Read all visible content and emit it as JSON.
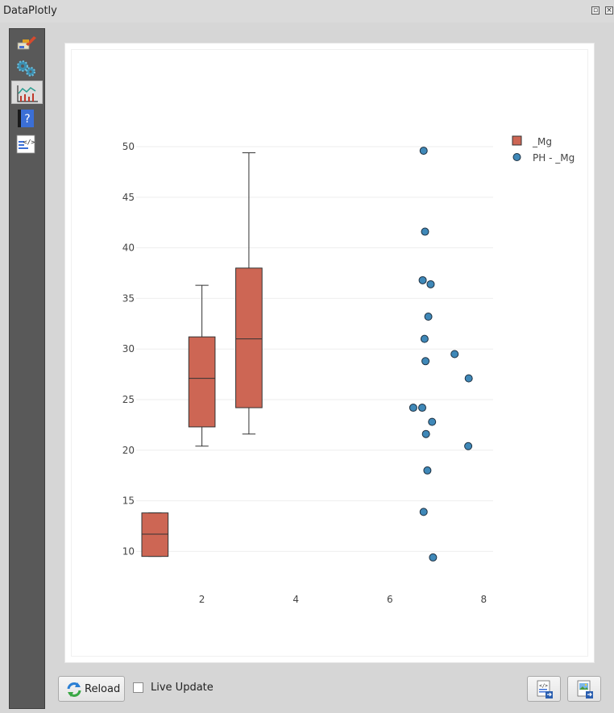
{
  "window": {
    "title": "DataPlotly",
    "float_icon": "float-icon",
    "close_icon": "close-icon"
  },
  "sidebar": {
    "items": [
      {
        "name": "style-brush-icon"
      },
      {
        "name": "settings-gears-icon"
      },
      {
        "name": "plot-chart-icon",
        "active": true
      },
      {
        "name": "help-icon"
      },
      {
        "name": "code-icon"
      }
    ]
  },
  "footer": {
    "reload_label": "Reload",
    "live_update_label": "Live Update",
    "live_update_checked": false,
    "export_html_icon": "export-html-icon",
    "export_image_icon": "export-image-icon"
  },
  "chart_data": {
    "type": "box+scatter",
    "xlim": [
      0.6,
      8.2
    ],
    "ylim": [
      7.8,
      50.8
    ],
    "x_ticks": [
      2,
      4,
      6,
      8
    ],
    "y_ticks": [
      10,
      15,
      20,
      25,
      30,
      35,
      40,
      45,
      50
    ],
    "grid": "horizontal",
    "legend_position": "top-right",
    "colors": {
      "box": "#cd6654",
      "points": "#3f88b8",
      "grid": "#eeeeee",
      "text": "#444444"
    },
    "series": [
      {
        "name": "_Mg",
        "type": "box",
        "boxes": [
          {
            "x": 1,
            "q1": 9.5,
            "median": 11.7,
            "q3": 13.8,
            "lower": 9.5,
            "upper": 13.8
          },
          {
            "x": 2,
            "q1": 22.3,
            "median": 27.1,
            "q3": 31.2,
            "lower": 20.4,
            "upper": 36.3
          },
          {
            "x": 3,
            "q1": 24.2,
            "median": 31.0,
            "q3": 38.0,
            "lower": 21.6,
            "upper": 49.4
          }
        ]
      },
      {
        "name": "PH - _Mg",
        "type": "scatter",
        "x": [
          6.72,
          6.75,
          6.7,
          6.87,
          6.82,
          6.74,
          6.76,
          7.38,
          7.68,
          6.5,
          6.69,
          6.9,
          6.77,
          7.67,
          6.8,
          6.72,
          6.92
        ],
        "y": [
          49.6,
          41.6,
          36.8,
          36.4,
          33.2,
          31.0,
          28.8,
          29.5,
          27.1,
          24.2,
          24.2,
          22.8,
          21.6,
          20.4,
          18.0,
          13.9,
          9.4
        ]
      }
    ]
  }
}
